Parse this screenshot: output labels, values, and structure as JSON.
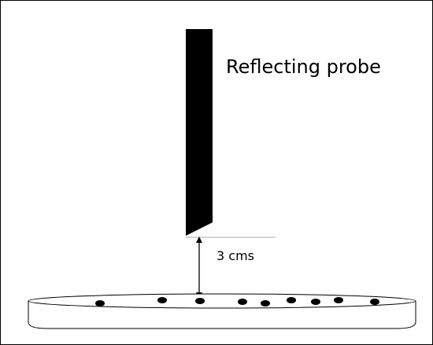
{
  "labels": {
    "probe": "Reflecting probe",
    "distance": "3 cms"
  }
}
